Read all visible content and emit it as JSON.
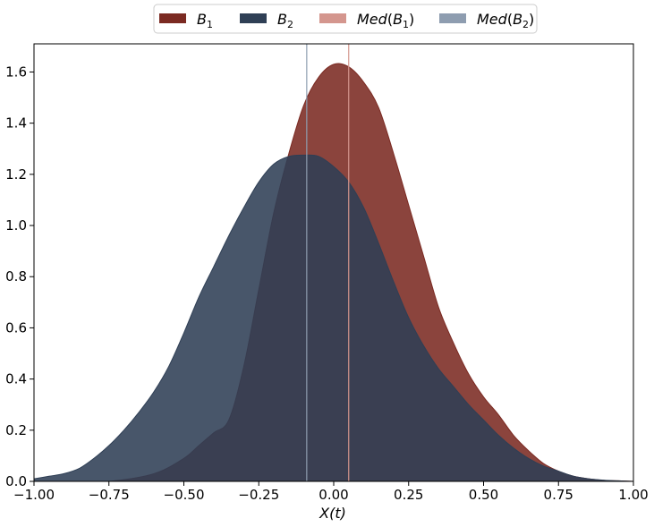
{
  "chart_data": {
    "type": "area",
    "xlabel": "X(t)",
    "ylabel": "",
    "xlim": [
      -1.0,
      1.0
    ],
    "ylim": [
      0.0,
      1.71
    ],
    "xticks": [
      -1.0,
      -0.75,
      -0.5,
      -0.25,
      0.0,
      0.25,
      0.5,
      0.75,
      1.0
    ],
    "xtick_labels": [
      "−1.00",
      "−0.75",
      "−0.50",
      "−0.25",
      "0.00",
      "0.25",
      "0.50",
      "0.75",
      "1.00"
    ],
    "yticks": [
      0.0,
      0.2,
      0.4,
      0.6,
      0.8,
      1.0,
      1.2,
      1.4,
      1.6
    ],
    "ytick_labels": [
      "0.0",
      "0.2",
      "0.4",
      "0.6",
      "0.8",
      "1.0",
      "1.2",
      "1.4",
      "1.6"
    ],
    "grid": false,
    "legend_position": "top-center",
    "series": [
      {
        "name": "B1",
        "legend_base": "B",
        "legend_sub": "1",
        "color": "#7b2a22",
        "x": [
          -1.0,
          -0.85,
          -0.75,
          -0.6,
          -0.5,
          -0.45,
          -0.4,
          -0.35,
          -0.3,
          -0.25,
          -0.2,
          -0.15,
          -0.1,
          -0.05,
          0.0,
          0.05,
          0.1,
          0.15,
          0.2,
          0.25,
          0.3,
          0.35,
          0.4,
          0.45,
          0.5,
          0.55,
          0.6,
          0.65,
          0.7,
          0.75,
          0.8,
          0.85,
          0.9,
          0.95,
          1.0
        ],
        "y": [
          0.0,
          0.0,
          0.0,
          0.03,
          0.09,
          0.14,
          0.19,
          0.24,
          0.45,
          0.75,
          1.05,
          1.28,
          1.47,
          1.58,
          1.63,
          1.62,
          1.56,
          1.46,
          1.28,
          1.08,
          0.88,
          0.68,
          0.54,
          0.42,
          0.33,
          0.26,
          0.18,
          0.12,
          0.07,
          0.04,
          0.02,
          0.01,
          0.004,
          0.002,
          0.0
        ]
      },
      {
        "name": "B2",
        "legend_base": "B",
        "legend_sub": "2",
        "color": "#2f3f55",
        "x": [
          -1.0,
          -0.95,
          -0.9,
          -0.85,
          -0.8,
          -0.75,
          -0.7,
          -0.65,
          -0.6,
          -0.55,
          -0.5,
          -0.45,
          -0.4,
          -0.35,
          -0.3,
          -0.25,
          -0.2,
          -0.15,
          -0.1,
          -0.05,
          0.0,
          0.05,
          0.1,
          0.15,
          0.2,
          0.25,
          0.3,
          0.35,
          0.4,
          0.45,
          0.5,
          0.55,
          0.6,
          0.65,
          0.7,
          0.75,
          0.8,
          0.85,
          0.9,
          0.95,
          1.0
        ],
        "y": [
          0.01,
          0.02,
          0.03,
          0.05,
          0.09,
          0.14,
          0.2,
          0.27,
          0.35,
          0.45,
          0.58,
          0.72,
          0.84,
          0.96,
          1.07,
          1.17,
          1.24,
          1.27,
          1.275,
          1.27,
          1.23,
          1.17,
          1.07,
          0.93,
          0.78,
          0.64,
          0.53,
          0.44,
          0.37,
          0.3,
          0.24,
          0.18,
          0.13,
          0.09,
          0.06,
          0.04,
          0.02,
          0.01,
          0.005,
          0.002,
          0.0
        ]
      }
    ],
    "medians": [
      {
        "name": "Med(B1)",
        "legend_prefix": "Med",
        "legend_base": "B",
        "legend_sub": "1",
        "x": 0.05,
        "color": "#d4968e"
      },
      {
        "name": "Med(B2)",
        "legend_prefix": "Med",
        "legend_base": "B",
        "legend_sub": "2",
        "x": -0.09,
        "color": "#8e9db0"
      }
    ]
  }
}
